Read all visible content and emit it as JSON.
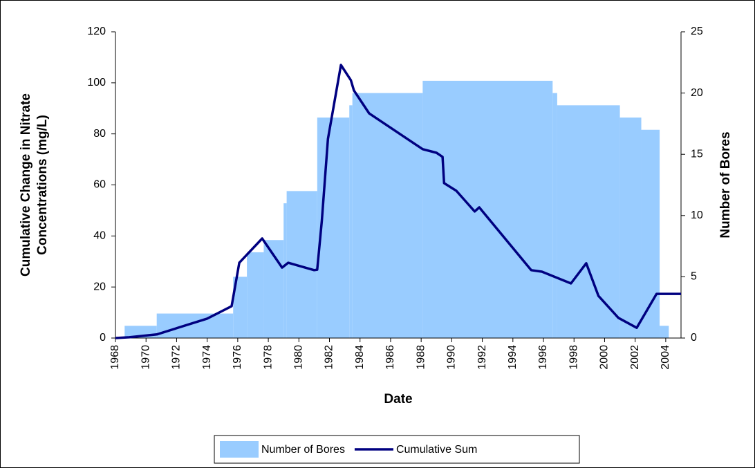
{
  "chart_data": {
    "type": "combo",
    "xlabel": "Date",
    "ylabel": [
      "Cumulative Change in Nitrate",
      "Concentrations (mg/L)"
    ],
    "y2label": "Number of Bores",
    "xlim": [
      1968,
      2005
    ],
    "xticks": [
      1968,
      1970,
      1972,
      1974,
      1976,
      1978,
      1980,
      1982,
      1984,
      1986,
      1988,
      1990,
      1992,
      1994,
      1996,
      1998,
      2000,
      2002,
      2004
    ],
    "ylim": [
      0,
      120
    ],
    "yticks": [
      0,
      20,
      40,
      60,
      80,
      100,
      120
    ],
    "y2lim": [
      0,
      25
    ],
    "y2ticks": [
      0,
      5,
      10,
      15,
      20,
      25
    ],
    "legend": "bottom",
    "series": [
      {
        "name": "Number of Bores",
        "type": "step-area",
        "axis": "y2",
        "color": "#99ccff",
        "x": [
          1968.6,
          1970.7,
          1975.7,
          1976.6,
          1977.7,
          1979.0,
          1979.2,
          1981.2,
          1983.3,
          1983.5,
          1988.1,
          1996.6,
          1996.9,
          2001.0,
          2002.4,
          2003.6,
          2004.2
        ],
        "values": [
          1,
          2,
          5,
          7,
          8,
          11,
          12,
          18,
          19,
          20,
          21,
          20,
          19,
          18,
          17,
          1,
          0
        ]
      },
      {
        "name": "Cumulative Sum",
        "type": "line",
        "axis": "y",
        "color": "#000080",
        "x": [
          1968.0,
          1968.9,
          1970.7,
          1974.0,
          1975.6,
          1976.1,
          1977.6,
          1978.9,
          1979.3,
          1981.0,
          1981.2,
          1981.5,
          1981.9,
          1982.75,
          1983.4,
          1983.6,
          1984.6,
          1987.6,
          1988.1,
          1989.0,
          1989.4,
          1989.5,
          1990.3,
          1991.5,
          1991.8,
          1995.2,
          1995.9,
          1997.8,
          1998.8,
          1999.6,
          2000.9,
          2002.1,
          2003.4,
          2003.7,
          2005.0
        ],
        "values": [
          0,
          0.3,
          1.4,
          7.6,
          12.5,
          29.5,
          39,
          27.6,
          29.5,
          26.6,
          26.8,
          46,
          78,
          107,
          101,
          97,
          88,
          76,
          74,
          72.6,
          71,
          60.7,
          57.7,
          49.6,
          51.2,
          26.6,
          26,
          21.4,
          29.3,
          16.5,
          7.9,
          4,
          17.3,
          17.3,
          17.3
        ]
      }
    ]
  }
}
